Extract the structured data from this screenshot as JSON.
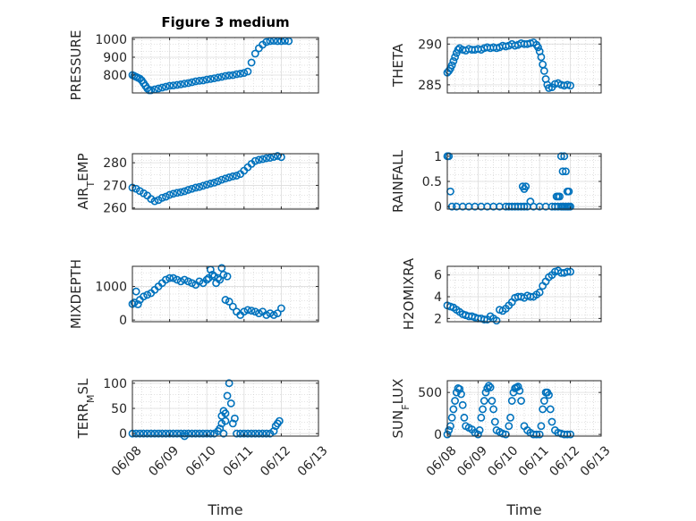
{
  "figure": {
    "title": "Figure 3 medium",
    "marker_color": "#0072bd"
  },
  "chart_data": [
    {
      "type": "scatter",
      "id": "pressure",
      "ylabel": "PRESSURE",
      "ylabel_sub": null,
      "ylim": [
        700,
        1010
      ],
      "yticks": [
        800,
        900,
        1000
      ],
      "xlim": [
        0,
        5
      ],
      "xticks": [],
      "xlabel": "",
      "grid": true,
      "marker": "circle",
      "x": [
        0.0,
        0.05,
        0.1,
        0.15,
        0.2,
        0.25,
        0.3,
        0.35,
        0.4,
        0.45,
        0.5,
        0.6,
        0.7,
        0.8,
        0.9,
        1.0,
        1.1,
        1.2,
        1.3,
        1.4,
        1.5,
        1.6,
        1.7,
        1.8,
        1.9,
        2.0,
        2.1,
        2.2,
        2.3,
        2.4,
        2.5,
        2.6,
        2.7,
        2.8,
        2.9,
        3.0,
        3.1,
        3.2,
        3.3,
        3.4,
        3.5,
        3.6,
        3.7,
        3.8,
        3.9,
        4.0,
        4.1,
        4.2
      ],
      "y": [
        800,
        795,
        790,
        785,
        780,
        770,
        755,
        740,
        725,
        715,
        715,
        720,
        725,
        730,
        735,
        740,
        742,
        745,
        748,
        752,
        755,
        760,
        765,
        768,
        770,
        775,
        778,
        782,
        786,
        790,
        795,
        798,
        800,
        805,
        808,
        812,
        820,
        870,
        920,
        950,
        970,
        985,
        990,
        992,
        990,
        990,
        992,
        990
      ]
    },
    {
      "type": "scatter",
      "id": "theta",
      "ylabel": "THETA",
      "ylabel_sub": null,
      "ylim": [
        284.0,
        290.8
      ],
      "yticks": [
        285,
        290
      ],
      "xlim": [
        0,
        5
      ],
      "xticks": [],
      "xlabel": "",
      "grid": true,
      "marker": "circle",
      "x": [
        0.0,
        0.05,
        0.1,
        0.15,
        0.2,
        0.25,
        0.3,
        0.35,
        0.4,
        0.5,
        0.6,
        0.7,
        0.8,
        0.9,
        1.0,
        1.1,
        1.2,
        1.3,
        1.4,
        1.5,
        1.6,
        1.7,
        1.8,
        1.9,
        2.0,
        2.1,
        2.2,
        2.3,
        2.4,
        2.5,
        2.6,
        2.7,
        2.8,
        2.9,
        2.95,
        3.0,
        3.05,
        3.1,
        3.15,
        3.2,
        3.25,
        3.3,
        3.4,
        3.5,
        3.6,
        3.7,
        3.8,
        3.9,
        4.0
      ],
      "y": [
        286.5,
        286.7,
        287.0,
        287.4,
        287.9,
        288.4,
        288.9,
        289.3,
        289.5,
        289.3,
        289.2,
        289.4,
        289.3,
        289.3,
        289.4,
        289.3,
        289.5,
        289.6,
        289.5,
        289.6,
        289.5,
        289.6,
        289.8,
        289.7,
        289.8,
        290.0,
        289.8,
        289.9,
        290.1,
        290.0,
        290.0,
        290.1,
        290.2,
        289.9,
        289.6,
        289.1,
        288.4,
        287.5,
        286.7,
        285.7,
        285.0,
        284.6,
        284.7,
        285.1,
        285.2,
        285.0,
        284.9,
        285.0,
        284.9
      ]
    },
    {
      "type": "scatter",
      "id": "air_temp",
      "ylabel": "AIR",
      "ylabel_sub": "T",
      "ylabel_rest": "EMP",
      "ylim": [
        259.5,
        284.0
      ],
      "yticks": [
        260,
        270,
        280
      ],
      "xlim": [
        0,
        5
      ],
      "xticks": [],
      "xlabel": "",
      "grid": true,
      "marker": "circle",
      "x": [
        0.0,
        0.1,
        0.2,
        0.3,
        0.4,
        0.5,
        0.6,
        0.7,
        0.8,
        0.9,
        1.0,
        1.1,
        1.2,
        1.3,
        1.4,
        1.5,
        1.6,
        1.7,
        1.8,
        1.9,
        2.0,
        2.1,
        2.2,
        2.3,
        2.4,
        2.5,
        2.6,
        2.7,
        2.8,
        2.9,
        3.0,
        3.1,
        3.2,
        3.3,
        3.4,
        3.5,
        3.6,
        3.7,
        3.8,
        3.9,
        4.0
      ],
      "y": [
        269,
        268.5,
        267.5,
        266.5,
        265.5,
        264.0,
        263.0,
        263.5,
        264.5,
        265.0,
        265.8,
        266.3,
        266.7,
        267.0,
        267.4,
        268.0,
        268.5,
        269.0,
        269.3,
        269.8,
        270.3,
        270.8,
        271.2,
        271.8,
        272.5,
        273.0,
        273.5,
        274.0,
        274.3,
        275.0,
        276.5,
        278.0,
        279.5,
        280.8,
        281.3,
        281.6,
        282.0,
        282.2,
        282.6,
        283.0,
        282.5
      ]
    },
    {
      "type": "scatter",
      "id": "rainfall",
      "ylabel": "RAINFALL",
      "ylabel_sub": null,
      "ylim": [
        -0.05,
        1.05
      ],
      "yticks": [
        0,
        0.5,
        1
      ],
      "xlim": [
        0,
        5
      ],
      "xticks": [],
      "xlabel": "",
      "grid": true,
      "marker": "circle",
      "x": [
        0.0,
        0.05,
        0.1,
        0.15,
        0.3,
        0.5,
        0.7,
        0.9,
        1.1,
        1.3,
        1.5,
        1.7,
        1.9,
        2.0,
        2.1,
        2.2,
        2.3,
        2.4,
        2.5,
        2.6,
        2.8,
        3.0,
        3.2,
        3.4,
        3.5,
        3.6,
        3.7,
        3.75,
        3.8,
        3.85,
        3.9,
        3.95,
        4.0,
        2.45,
        2.55,
        2.5,
        2.7,
        3.6,
        3.65,
        3.55,
        3.7,
        3.8,
        3.75,
        3.85,
        3.9,
        3.95
      ],
      "y": [
        1.0,
        1.0,
        0.3,
        0.0,
        0.0,
        0.0,
        0.0,
        0.0,
        0.0,
        0.0,
        0.0,
        0.0,
        0.0,
        0.0,
        0.0,
        0.0,
        0.0,
        0.0,
        0.0,
        0.0,
        0.0,
        0.0,
        0.0,
        0.0,
        0.0,
        0.0,
        0.0,
        0.0,
        0.0,
        0.0,
        0.0,
        0.0,
        0.0,
        0.4,
        0.4,
        0.35,
        0.1,
        0.2,
        0.2,
        0.2,
        1.0,
        1.0,
        0.7,
        0.7,
        0.3,
        0.3
      ]
    },
    {
      "type": "scatter",
      "id": "mixdepth",
      "ylabel": "MIXDEPTH",
      "ylabel_sub": null,
      "ylim": [
        -50,
        1600
      ],
      "yticks": [
        0,
        1000
      ],
      "xlim": [
        0,
        5
      ],
      "xticks": [],
      "xlabel": "",
      "grid": true,
      "marker": "circle",
      "x": [
        0.0,
        0.05,
        0.1,
        0.15,
        0.2,
        0.3,
        0.4,
        0.5,
        0.6,
        0.7,
        0.8,
        0.9,
        1.0,
        1.1,
        1.2,
        1.3,
        1.4,
        1.5,
        1.6,
        1.7,
        1.8,
        1.9,
        2.0,
        2.05,
        2.1,
        2.15,
        2.2,
        2.25,
        2.3,
        2.35,
        2.4,
        2.5,
        2.6,
        2.7,
        2.8,
        2.9,
        3.0,
        3.1,
        3.2,
        3.3,
        3.4,
        3.5,
        3.6,
        3.7,
        3.8,
        3.9,
        4.0,
        2.45,
        2.55
      ],
      "y": [
        480,
        520,
        850,
        470,
        600,
        700,
        750,
        800,
        900,
        1000,
        1100,
        1200,
        1250,
        1250,
        1200,
        1150,
        1200,
        1150,
        1100,
        1050,
        1150,
        1100,
        1200,
        1250,
        1500,
        1350,
        1300,
        1100,
        1250,
        1200,
        1550,
        600,
        550,
        400,
        250,
        150,
        250,
        300,
        280,
        250,
        200,
        250,
        150,
        200,
        150,
        200,
        350,
        1350,
        1300
      ]
    },
    {
      "type": "scatter",
      "id": "h2omixra",
      "ylabel": "H2OMIXRA",
      "ylabel_sub": null,
      "ylim": [
        1.7,
        6.8
      ],
      "yticks": [
        2,
        4,
        6
      ],
      "xlim": [
        0,
        5
      ],
      "xticks": [],
      "xlabel": "",
      "grid": true,
      "marker": "circle",
      "x": [
        0.0,
        0.1,
        0.2,
        0.3,
        0.4,
        0.5,
        0.6,
        0.7,
        0.8,
        0.9,
        1.0,
        1.1,
        1.2,
        1.3,
        1.4,
        1.5,
        1.6,
        1.7,
        1.8,
        1.9,
        2.0,
        2.1,
        2.2,
        2.3,
        2.4,
        2.5,
        2.6,
        2.7,
        2.8,
        2.9,
        3.0,
        3.1,
        3.2,
        3.3,
        3.4,
        3.5,
        3.6,
        3.7,
        3.8,
        3.9,
        4.0
      ],
      "y": [
        3.2,
        3.1,
        3.0,
        2.8,
        2.6,
        2.4,
        2.3,
        2.2,
        2.2,
        2.1,
        2.0,
        2.0,
        1.9,
        1.9,
        2.2,
        2.0,
        1.8,
        2.8,
        2.7,
        2.9,
        3.2,
        3.5,
        3.9,
        4.0,
        4.0,
        3.9,
        4.1,
        4.0,
        4.0,
        4.2,
        4.4,
        5.0,
        5.4,
        5.8,
        6.0,
        6.3,
        6.4,
        6.2,
        6.2,
        6.3,
        6.3
      ]
    },
    {
      "type": "scatter",
      "id": "terr_msl",
      "ylabel": "TERR",
      "ylabel_sub": "M",
      "ylabel_rest": "SL",
      "ylim": [
        -5,
        105
      ],
      "yticks": [
        0,
        50,
        100
      ],
      "xlim": [
        0,
        5
      ],
      "xticks": [
        "06/08",
        "06/09",
        "06/10",
        "06/11",
        "06/12",
        "06/13"
      ],
      "xlabel": "Time",
      "grid": true,
      "marker": "circle",
      "x": [
        0.0,
        0.1,
        0.2,
        0.3,
        0.4,
        0.5,
        0.6,
        0.7,
        0.8,
        0.9,
        1.0,
        1.1,
        1.2,
        1.3,
        1.4,
        1.5,
        1.6,
        1.7,
        1.8,
        1.9,
        2.0,
        2.1,
        2.2,
        2.3,
        2.4,
        2.45,
        2.5,
        2.55,
        2.6,
        2.65,
        2.7,
        2.75,
        2.8,
        2.9,
        3.0,
        3.1,
        3.2,
        3.3,
        3.4,
        3.5,
        3.6,
        3.7,
        3.8,
        3.85,
        3.9,
        3.95,
        2.35,
        2.45,
        2.5,
        2.4,
        1.4
      ],
      "y": [
        0,
        0,
        0,
        0,
        0,
        0,
        0,
        0,
        0,
        0,
        0,
        0,
        0,
        0,
        0,
        0,
        0,
        0,
        0,
        0,
        0,
        0,
        0,
        5,
        20,
        45,
        40,
        75,
        100,
        60,
        20,
        30,
        0,
        0,
        0,
        0,
        0,
        0,
        0,
        0,
        0,
        0,
        5,
        15,
        20,
        25,
        10,
        0,
        25,
        35,
        -5
      ]
    },
    {
      "type": "scatter",
      "id": "sunflux",
      "ylabel": "SUN",
      "ylabel_sub": "F",
      "ylabel_rest": "LUX",
      "ylim": [
        -20,
        640
      ],
      "yticks": [
        0,
        500
      ],
      "xlim": [
        0,
        5
      ],
      "xticks": [
        "06/08",
        "06/09",
        "06/10",
        "06/11",
        "06/12",
        "06/13"
      ],
      "xlabel": "Time",
      "grid": true,
      "marker": "circle",
      "x": [
        0.0,
        0.05,
        0.1,
        0.15,
        0.2,
        0.25,
        0.3,
        0.35,
        0.4,
        0.45,
        0.5,
        0.55,
        0.6,
        0.7,
        0.8,
        0.9,
        1.0,
        1.05,
        1.1,
        1.15,
        1.2,
        1.25,
        1.3,
        1.35,
        1.4,
        1.45,
        1.5,
        1.55,
        1.6,
        1.7,
        1.8,
        1.9,
        2.0,
        2.05,
        2.1,
        2.15,
        2.2,
        2.25,
        2.3,
        2.35,
        2.4,
        2.5,
        2.6,
        2.7,
        2.8,
        2.9,
        3.0,
        3.05,
        3.1,
        3.15,
        3.2,
        3.25,
        3.3,
        3.35,
        3.4,
        3.5,
        3.6,
        3.7,
        3.8,
        3.9,
        4.0
      ],
      "y": [
        0,
        50,
        100,
        200,
        300,
        400,
        500,
        550,
        540,
        480,
        350,
        200,
        100,
        80,
        60,
        20,
        0,
        50,
        200,
        300,
        400,
        500,
        550,
        580,
        560,
        400,
        300,
        150,
        50,
        30,
        10,
        0,
        100,
        200,
        400,
        500,
        550,
        560,
        570,
        520,
        400,
        100,
        50,
        20,
        0,
        0,
        0,
        100,
        300,
        400,
        500,
        500,
        470,
        300,
        150,
        50,
        20,
        10,
        0,
        0,
        0
      ]
    }
  ]
}
